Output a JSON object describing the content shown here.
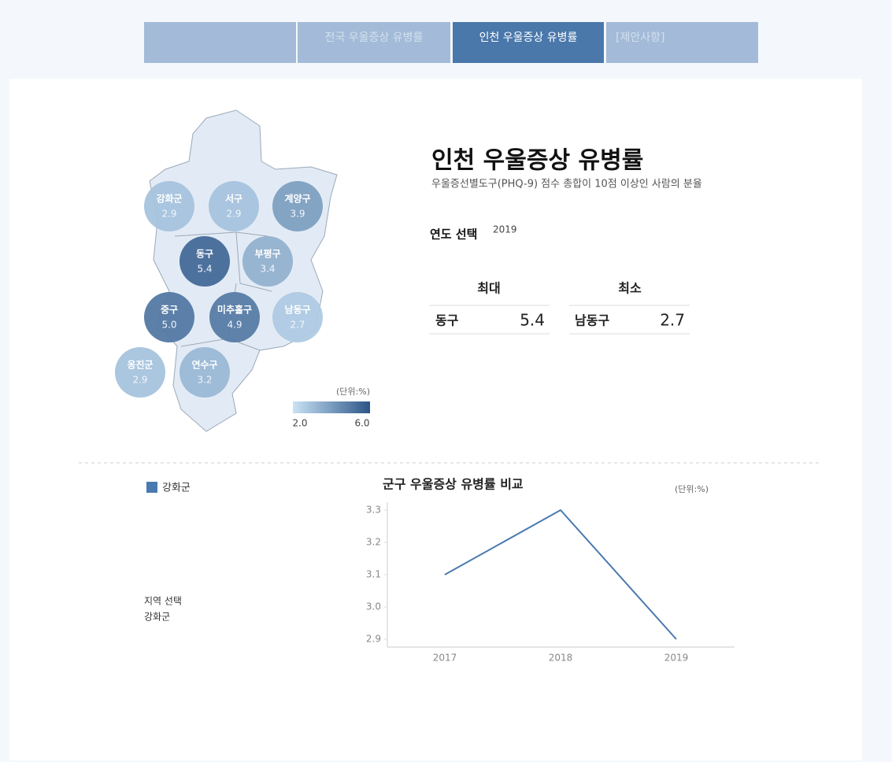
{
  "nav": {
    "tabs": [
      "전국 우울증상 유병률",
      "인천 우울증상 유병률",
      "[제안사항]"
    ],
    "active": 1
  },
  "map": {
    "districts": [
      "강화군",
      "서구",
      "계양구",
      "동구",
      "부평구",
      "중구",
      "미추홀구",
      "남동구",
      "옹진군",
      "연수구"
    ],
    "values": [
      2.9,
      2.9,
      3.9,
      5.4,
      3.4,
      5,
      4.9,
      2.7,
      2.9,
      3.2
    ],
    "value_labels": [
      "2.9",
      "2.9",
      "3.9",
      "5.4",
      "3.4",
      "5.0",
      "4.9",
      "2.7",
      "2.9",
      "3.2"
    ],
    "unit": "(단위:%)",
    "scale": {
      "min": {
        "value": 2,
        "label": "2.0"
      },
      "max": {
        "value": 6,
        "label": "6.0"
      },
      "colors": [
        "#c9e3f6",
        "#2c5587"
      ]
    }
  },
  "header": {
    "title": "인천 우울증상 유병률",
    "subtitle": "우울증선별도구(PHQ-9) 점수 총합이 10점 이상인 사람의 분율"
  },
  "year_select": {
    "label": "연도 선택",
    "value": "2019"
  },
  "summary": {
    "max": {
      "label": "최대",
      "name": "동구",
      "value": 5.4
    },
    "min": {
      "label": "최소",
      "name": "남동구",
      "value": 2.7
    }
  },
  "region_select": {
    "label": "지역 선택",
    "value": "강화군"
  },
  "chart_data": {
    "type": "line",
    "title": "군구 우울증상 유병률 비교",
    "unit": "(단위:%)",
    "categories": [
      "2017",
      "2018",
      "2019"
    ],
    "series": [
      {
        "name": "강화군",
        "color": "#4a7ab0",
        "values": [
          3.1,
          3.3,
          2.9
        ]
      }
    ],
    "ylim": [
      2.9,
      3.3
    ],
    "yticks": [
      2.9,
      {
        "value": 3,
        "label": "3.0"
      },
      3.1,
      3.2,
      3.3
    ],
    "legend": "top-left"
  }
}
